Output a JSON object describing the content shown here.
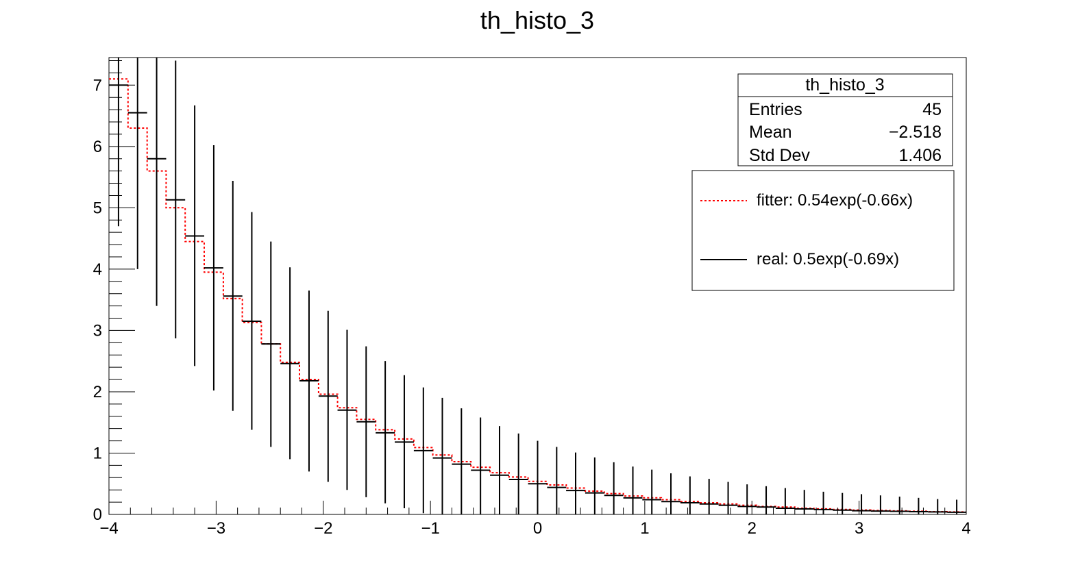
{
  "chart_data": {
    "type": "bar",
    "title": "th_histo_3",
    "xlabel": "",
    "ylabel": "",
    "xlim": [
      -4,
      4
    ],
    "ylim": [
      0,
      7.45
    ],
    "x_ticks": [
      -4,
      -3,
      -2,
      -1,
      0,
      1,
      2,
      3,
      4
    ],
    "x_tick_labels": [
      "−4",
      "−3",
      "−2",
      "−1",
      "0",
      "1",
      "2",
      "3",
      "4"
    ],
    "y_ticks": [
      0,
      1,
      2,
      3,
      4,
      5,
      6,
      7
    ],
    "y_tick_labels": [
      "0",
      "1",
      "2",
      "3",
      "4",
      "5",
      "6",
      "7"
    ],
    "grid": false,
    "bin_width": 0.178,
    "series": [
      {
        "name": "real: 0.5exp(-0.69x)",
        "style": "step-with-error-bars",
        "color": "#000000",
        "x": [
          -3.911,
          -3.733,
          -3.555,
          -3.378,
          -3.2,
          -3.022,
          -2.844,
          -2.667,
          -2.489,
          -2.311,
          -2.133,
          -1.955,
          -1.778,
          -1.6,
          -1.422,
          -1.244,
          -1.066,
          -0.889,
          -0.711,
          -0.533,
          -0.355,
          -0.178,
          0.0,
          0.178,
          0.355,
          0.533,
          0.711,
          0.889,
          1.066,
          1.244,
          1.422,
          1.6,
          1.778,
          1.955,
          2.133,
          2.311,
          2.489,
          2.667,
          2.844,
          3.022,
          3.2,
          3.378,
          3.555,
          3.733,
          3.911
        ],
        "values": [
          7.0,
          6.55,
          5.8,
          5.13,
          4.54,
          4.02,
          3.56,
          3.15,
          2.78,
          2.46,
          2.18,
          1.93,
          1.7,
          1.51,
          1.33,
          1.18,
          1.04,
          0.92,
          0.82,
          0.72,
          0.64,
          0.57,
          0.5,
          0.44,
          0.39,
          0.35,
          0.31,
          0.27,
          0.24,
          0.21,
          0.19,
          0.17,
          0.15,
          0.13,
          0.12,
          0.1,
          0.09,
          0.08,
          0.07,
          0.06,
          0.055,
          0.05,
          0.045,
          0.04,
          0.035
        ],
        "error_low": [
          4.7,
          4.0,
          3.4,
          2.87,
          2.42,
          2.02,
          1.69,
          1.38,
          1.1,
          0.9,
          0.7,
          0.53,
          0.4,
          0.28,
          0.18,
          0.1,
          0.02,
          0.0,
          0.0,
          0.0,
          0.0,
          0.0,
          0.0,
          0.0,
          0.0,
          0.0,
          0.0,
          0.0,
          0.0,
          0.0,
          0.0,
          0.0,
          0.0,
          0.0,
          0.0,
          0.0,
          0.0,
          0.0,
          0.0,
          0.0,
          0.0,
          0.0,
          0.0,
          0.0,
          0.0
        ],
        "error_high": [
          7.45,
          7.45,
          7.45,
          7.4,
          6.67,
          6.02,
          5.44,
          4.93,
          4.45,
          4.03,
          3.65,
          3.32,
          3.01,
          2.74,
          2.5,
          2.27,
          2.07,
          1.9,
          1.73,
          1.58,
          1.44,
          1.32,
          1.2,
          1.1,
          1.01,
          0.93,
          0.85,
          0.78,
          0.73,
          0.67,
          0.62,
          0.58,
          0.53,
          0.49,
          0.46,
          0.43,
          0.4,
          0.37,
          0.35,
          0.33,
          0.31,
          0.29,
          0.27,
          0.25,
          0.24
        ]
      },
      {
        "name": "fitter: 0.54exp(-0.66x)",
        "style": "dotted-step",
        "color": "#ff0000",
        "x": [
          -3.911,
          -3.733,
          -3.555,
          -3.378,
          -3.2,
          -3.022,
          -2.844,
          -2.667,
          -2.489,
          -2.311,
          -2.133,
          -1.955,
          -1.778,
          -1.6,
          -1.422,
          -1.244,
          -1.066,
          -0.889,
          -0.711,
          -0.533,
          -0.355,
          -0.178,
          0.0,
          0.178,
          0.355,
          0.533,
          0.711,
          0.889,
          1.066,
          1.244,
          1.422,
          1.6,
          1.778,
          1.955,
          2.133,
          2.311,
          2.489,
          2.667,
          2.844,
          3.022,
          3.2,
          3.378,
          3.555,
          3.733,
          3.911
        ],
        "values": [
          7.1,
          6.3,
          5.6,
          5.0,
          4.45,
          3.95,
          3.52,
          3.13,
          2.78,
          2.48,
          2.2,
          1.96,
          1.74,
          1.55,
          1.38,
          1.23,
          1.09,
          0.97,
          0.86,
          0.77,
          0.68,
          0.61,
          0.54,
          0.48,
          0.43,
          0.38,
          0.34,
          0.3,
          0.27,
          0.24,
          0.21,
          0.19,
          0.17,
          0.15,
          0.13,
          0.12,
          0.1,
          0.09,
          0.08,
          0.072,
          0.064,
          0.057,
          0.051,
          0.045,
          0.04
        ]
      }
    ],
    "legend": {
      "placement": "top-right",
      "entries": [
        {
          "label": "fitter: 0.54exp(-0.66x)",
          "color": "#ff0000",
          "dash": "dotted"
        },
        {
          "label": "real: 0.5exp(-0.69x)",
          "color": "#000000",
          "dash": "solid"
        }
      ]
    },
    "stats_box": {
      "placement": "top-right",
      "title": "th_histo_3",
      "rows": [
        {
          "label": "Entries",
          "value": "45"
        },
        {
          "label": "Mean",
          "value": "−2.518"
        },
        {
          "label": "Std Dev",
          "value": "1.406"
        }
      ]
    }
  }
}
